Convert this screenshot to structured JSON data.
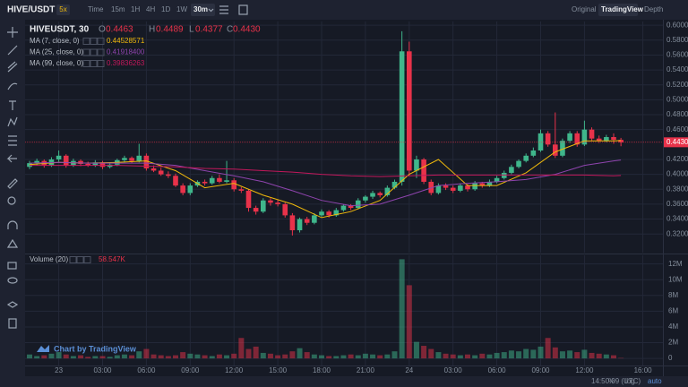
{
  "topbar": {
    "pair": "HIVE/USDT",
    "leverage": "5x",
    "intervals": [
      "Time",
      "15m",
      "1H",
      "4H",
      "1D",
      "1W"
    ],
    "active": "30m",
    "views": [
      "Original",
      "TradingView",
      "Depth"
    ]
  },
  "legend": {
    "symbol": "HIVEUSDT, 30",
    "o": "O",
    "o_value": "0.4463",
    "h": "H",
    "h_value": "0.4489",
    "l": "L",
    "l_value": "0.4377",
    "c": "C",
    "c_value": "0.4430"
  },
  "watermark": "Chart by TradingView",
  "footer": {
    "clock": "14:50:09 (UTC)",
    "percent": "%",
    "log": "log",
    "auto": "auto"
  },
  "chart_data": [
    {
      "type": "candlestick",
      "up_color": "#3fb68b",
      "down_color": "#e8324a",
      "grid": true,
      "categories": [
        null,
        null,
        null,
        null,
        "23",
        null,
        null,
        null,
        null,
        null,
        "03:00",
        null,
        null,
        null,
        null,
        null,
        "06:00",
        null,
        null,
        null,
        null,
        null,
        "09:00",
        null,
        null,
        null,
        null,
        null,
        "12:00",
        null,
        null,
        null,
        null,
        null,
        "15:00",
        null,
        null,
        null,
        null,
        null,
        "18:00",
        null,
        null,
        null,
        null,
        null,
        "21:00",
        null,
        null,
        null,
        null,
        null,
        "24",
        null,
        null,
        null,
        null,
        null,
        "03:00",
        null,
        null,
        null,
        null,
        null,
        "06:00",
        null,
        null,
        null,
        null,
        null,
        "09:00",
        null,
        null,
        null,
        null,
        null,
        "12:00",
        null,
        null,
        null,
        null,
        null,
        null,
        null,
        "16:00"
      ],
      "ohlc": [
        [
          0.41,
          0.418,
          0.407,
          0.415
        ],
        [
          0.415,
          0.421,
          0.412,
          0.418
        ],
        [
          0.418,
          0.42,
          0.409,
          0.412
        ],
        [
          0.412,
          0.423,
          0.41,
          0.42
        ],
        [
          0.42,
          0.432,
          0.417,
          0.425
        ],
        [
          0.425,
          0.427,
          0.409,
          0.412
        ],
        [
          0.412,
          0.421,
          0.41,
          0.418
        ],
        [
          0.418,
          0.42,
          0.411,
          0.414
        ],
        [
          0.414,
          0.417,
          0.41,
          0.412
        ],
        [
          0.412,
          0.419,
          0.41,
          0.416
        ],
        [
          0.416,
          0.418,
          0.407,
          0.41
        ],
        [
          0.41,
          0.416,
          0.408,
          0.413
        ],
        [
          0.413,
          0.421,
          0.411,
          0.419
        ],
        [
          0.419,
          0.425,
          0.416,
          0.422
        ],
        [
          0.422,
          0.424,
          0.415,
          0.418
        ],
        [
          0.418,
          0.441,
          0.416,
          0.425
        ],
        [
          0.425,
          0.428,
          0.405,
          0.408
        ],
        [
          0.408,
          0.412,
          0.403,
          0.405
        ],
        [
          0.405,
          0.409,
          0.398,
          0.4
        ],
        [
          0.4,
          0.404,
          0.395,
          0.398
        ],
        [
          0.398,
          0.401,
          0.383,
          0.385
        ],
        [
          0.385,
          0.388,
          0.372,
          0.375
        ],
        [
          0.375,
          0.388,
          0.372,
          0.385
        ],
        [
          0.385,
          0.392,
          0.383,
          0.39
        ],
        [
          0.39,
          0.393,
          0.385,
          0.388
        ],
        [
          0.388,
          0.398,
          0.386,
          0.395
        ],
        [
          0.395,
          0.4,
          0.388,
          0.39
        ],
        [
          0.39,
          0.418,
          0.388,
          0.392
        ],
        [
          0.392,
          0.395,
          0.377,
          0.38
        ],
        [
          0.38,
          0.383,
          0.375,
          0.378
        ],
        [
          0.378,
          0.38,
          0.35,
          0.355
        ],
        [
          0.355,
          0.358,
          0.346,
          0.35
        ],
        [
          0.35,
          0.368,
          0.348,
          0.365
        ],
        [
          0.365,
          0.368,
          0.358,
          0.362
        ],
        [
          0.362,
          0.366,
          0.357,
          0.36
        ],
        [
          0.36,
          0.362,
          0.342,
          0.345
        ],
        [
          0.345,
          0.348,
          0.318,
          0.325
        ],
        [
          0.325,
          0.342,
          0.322,
          0.34
        ],
        [
          0.34,
          0.343,
          0.332,
          0.335
        ],
        [
          0.335,
          0.348,
          0.333,
          0.345
        ],
        [
          0.345,
          0.353,
          0.343,
          0.35
        ],
        [
          0.35,
          0.352,
          0.342,
          0.345
        ],
        [
          0.345,
          0.355,
          0.343,
          0.352
        ],
        [
          0.352,
          0.36,
          0.35,
          0.358
        ],
        [
          0.358,
          0.36,
          0.352,
          0.355
        ],
        [
          0.355,
          0.368,
          0.353,
          0.365
        ],
        [
          0.365,
          0.372,
          0.362,
          0.37
        ],
        [
          0.37,
          0.378,
          0.367,
          0.375
        ],
        [
          0.375,
          0.377,
          0.369,
          0.372
        ],
        [
          0.372,
          0.385,
          0.37,
          0.382
        ],
        [
          0.382,
          0.393,
          0.38,
          0.39
        ],
        [
          0.39,
          0.592,
          0.385,
          0.565
        ],
        [
          0.565,
          0.578,
          0.398,
          0.405
        ],
        [
          0.405,
          0.425,
          0.395,
          0.42
        ],
        [
          0.42,
          0.422,
          0.387,
          0.39
        ],
        [
          0.39,
          0.393,
          0.372,
          0.375
        ],
        [
          0.375,
          0.388,
          0.373,
          0.385
        ],
        [
          0.385,
          0.388,
          0.379,
          0.382
        ],
        [
          0.382,
          0.385,
          0.375,
          0.378
        ],
        [
          0.378,
          0.388,
          0.376,
          0.385
        ],
        [
          0.385,
          0.387,
          0.377,
          0.38
        ],
        [
          0.38,
          0.391,
          0.378,
          0.388
        ],
        [
          0.388,
          0.39,
          0.382,
          0.385
        ],
        [
          0.385,
          0.393,
          0.383,
          0.39
        ],
        [
          0.39,
          0.398,
          0.388,
          0.395
        ],
        [
          0.395,
          0.405,
          0.393,
          0.402
        ],
        [
          0.402,
          0.413,
          0.4,
          0.41
        ],
        [
          0.41,
          0.42,
          0.408,
          0.418
        ],
        [
          0.418,
          0.428,
          0.416,
          0.425
        ],
        [
          0.425,
          0.436,
          0.423,
          0.432
        ],
        [
          0.432,
          0.46,
          0.43,
          0.455
        ],
        [
          0.455,
          0.458,
          0.437,
          0.44
        ],
        [
          0.44,
          0.483,
          0.422,
          0.425
        ],
        [
          0.425,
          0.448,
          0.423,
          0.445
        ],
        [
          0.445,
          0.458,
          0.442,
          0.455
        ],
        [
          0.455,
          0.458,
          0.437,
          0.44
        ],
        [
          0.44,
          0.472,
          0.438,
          0.46
        ],
        [
          0.46,
          0.463,
          0.445,
          0.448
        ],
        [
          0.448,
          0.452,
          0.442,
          0.445
        ],
        [
          0.445,
          0.453,
          0.443,
          0.45
        ],
        [
          0.45,
          0.455,
          0.441,
          0.4463
        ],
        [
          0.4463,
          0.4489,
          0.4377,
          0.443
        ],
        null,
        null,
        null
      ],
      "ylim": [
        0.295,
        0.605
      ],
      "yticks": [
        {
          "value": 0.32,
          "label": "0.3200"
        },
        {
          "value": 0.34,
          "label": "0.3400"
        },
        {
          "value": 0.36,
          "label": "0.3600"
        },
        {
          "value": 0.38,
          "label": "0.3800"
        },
        {
          "value": 0.4,
          "label": "0.4000"
        },
        {
          "value": 0.42,
          "label": "0.4200"
        },
        {
          "value": 0.46,
          "label": "0.4600"
        },
        {
          "value": 0.48,
          "label": "0.4800"
        },
        {
          "value": 0.5,
          "label": "0.5000"
        },
        {
          "value": 0.52,
          "label": "0.5200"
        },
        {
          "value": 0.54,
          "label": "0.5400"
        },
        {
          "value": 0.56,
          "label": "0.5600"
        },
        {
          "value": 0.58,
          "label": "0.5800"
        },
        {
          "value": 0.6,
          "label": "0.6000"
        }
      ],
      "series": [
        {
          "name": "MA (7, close, 0)",
          "color": "#f0b90b",
          "last_label": "0.44528571",
          "x": [
            0,
            4,
            8,
            12,
            16,
            20,
            24,
            28,
            32,
            36,
            40,
            44,
            48,
            52,
            56,
            60,
            64,
            68,
            72,
            76,
            80,
            81
          ],
          "values": [
            0.413,
            0.416,
            0.415,
            0.416,
            0.418,
            0.405,
            0.382,
            0.388,
            0.372,
            0.36,
            0.342,
            0.35,
            0.365,
            0.4,
            0.42,
            0.385,
            0.385,
            0.402,
            0.43,
            0.445,
            0.445,
            0.4453
          ]
        },
        {
          "name": "MA (25, close, 0)",
          "color": "#8e44ad",
          "last_label": "0.41918400",
          "x": [
            0,
            4,
            8,
            12,
            16,
            20,
            24,
            28,
            32,
            36,
            40,
            44,
            48,
            52,
            56,
            60,
            64,
            68,
            72,
            76,
            80,
            81
          ],
          "values": [
            0.415,
            0.416,
            0.415,
            0.415,
            0.415,
            0.412,
            0.405,
            0.398,
            0.39,
            0.378,
            0.365,
            0.358,
            0.36,
            0.372,
            0.385,
            0.388,
            0.39,
            0.393,
            0.4,
            0.412,
            0.418,
            0.4192
          ]
        },
        {
          "name": "MA (99, close, 0)",
          "color": "#c2185b",
          "last_label": "0.39836263",
          "x": [
            0,
            4,
            8,
            12,
            16,
            20,
            24,
            28,
            32,
            36,
            40,
            44,
            48,
            52,
            56,
            60,
            64,
            68,
            72,
            76,
            80,
            81
          ],
          "values": [
            0.412,
            0.412,
            0.412,
            0.412,
            0.411,
            0.41,
            0.408,
            0.407,
            0.405,
            0.403,
            0.4,
            0.398,
            0.397,
            0.398,
            0.399,
            0.399,
            0.399,
            0.399,
            0.399,
            0.399,
            0.398,
            0.3984
          ]
        }
      ]
    },
    {
      "type": "bar",
      "title": "Volume (20)",
      "last_label": "58.547K",
      "grid": true,
      "values": [
        500000,
        300000,
        400000,
        600000,
        800000,
        500000,
        300000,
        400000,
        200000,
        300000,
        300000,
        200000,
        400000,
        500000,
        400000,
        900000,
        1200000,
        500000,
        400000,
        300000,
        400000,
        800000,
        600000,
        500000,
        400000,
        300000,
        500000,
        400000,
        600000,
        2600000,
        1200000,
        1500000,
        700000,
        600000,
        400000,
        500000,
        900000,
        1300000,
        800000,
        500000,
        400000,
        300000,
        300000,
        400000,
        500000,
        400000,
        600000,
        500000,
        400000,
        500000,
        900000,
        12600000,
        9300000,
        2100000,
        1600000,
        1200000,
        800000,
        600000,
        500000,
        400000,
        500000,
        400000,
        600000,
        500000,
        700000,
        800000,
        1000000,
        900000,
        1200000,
        1100000,
        1500000,
        2600000,
        1400000,
        900000,
        1000000,
        800000,
        1100000,
        700000,
        600000,
        500000,
        400000,
        58547,
        null,
        null,
        null
      ],
      "ylim": [
        -900000,
        13100000
      ],
      "yticks": [
        0,
        {
          "value": 2000000,
          "label": "2M"
        },
        {
          "value": 4000000,
          "label": "4M"
        },
        {
          "value": 6000000,
          "label": "6M"
        },
        {
          "value": 8000000,
          "label": "8M"
        },
        {
          "value": 10000000,
          "label": "10M"
        },
        {
          "value": 12000000,
          "label": "12M"
        }
      ]
    }
  ]
}
